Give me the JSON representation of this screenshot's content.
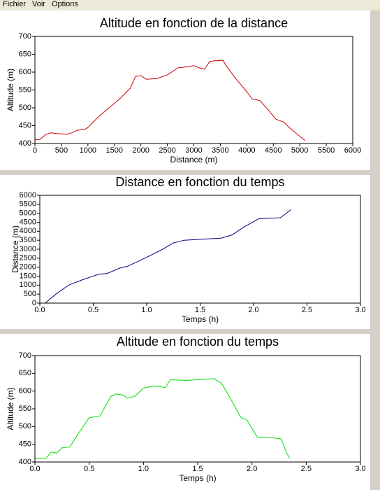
{
  "menu": [
    "Fichier",
    "Voir",
    "Options"
  ],
  "chart_data": [
    {
      "type": "line",
      "title": "Altitude en fonction de la distance",
      "xlabel": "Distance (m)",
      "ylabel": "Altitude (m)",
      "x": [
        0,
        100,
        200,
        300,
        400,
        500,
        600,
        700,
        800,
        950,
        1000,
        1200,
        1400,
        1600,
        1800,
        1900,
        2000,
        2100,
        2300,
        2500,
        2700,
        2900,
        3000,
        3100,
        3200,
        3300,
        3400,
        3550,
        3600,
        3800,
        4000,
        4100,
        4250,
        4400,
        4550,
        4700,
        4800,
        5000,
        5100
      ],
      "series": [
        {
          "color": "#cc0000",
          "values": [
            410,
            412,
            425,
            430,
            428,
            427,
            426,
            430,
            437,
            440,
            445,
            475,
            500,
            525,
            555,
            588,
            590,
            580,
            582,
            592,
            612,
            615,
            618,
            612,
            608,
            630,
            632,
            633,
            620,
            580,
            545,
            525,
            520,
            495,
            468,
            460,
            445,
            420,
            408
          ]
        }
      ],
      "xlim": [
        0,
        6000
      ],
      "xticks": [
        0,
        500,
        1000,
        1500,
        2000,
        2500,
        3000,
        3500,
        4000,
        4500,
        5000,
        5500,
        6000
      ],
      "ylim": [
        400,
        700
      ],
      "yticks": [
        400,
        450,
        500,
        550,
        600,
        650,
        700
      ]
    },
    {
      "type": "line",
      "title": "Distance en fonction du temps",
      "xlabel": "Temps (h)",
      "ylabel": "Distance (m)",
      "x": [
        0,
        0.05,
        0.15,
        0.27,
        0.4,
        0.55,
        0.63,
        0.75,
        0.82,
        1.0,
        1.15,
        1.25,
        1.35,
        1.5,
        1.7,
        1.8,
        1.9,
        2.05,
        2.25,
        2.35
      ],
      "series": [
        {
          "color": "#000080",
          "values": [
            0,
            0,
            500,
            1000,
            1300,
            1600,
            1650,
            1950,
            2050,
            2550,
            3000,
            3350,
            3500,
            3550,
            3620,
            3800,
            4200,
            4700,
            4750,
            5200
          ]
        }
      ],
      "xlim": [
        0,
        3
      ],
      "xticks": [
        {
          "value": 0,
          "label": "0.0"
        },
        0.5,
        {
          "value": 1,
          "label": "1.0"
        },
        1.5,
        {
          "value": 2,
          "label": "2.0"
        },
        2.5,
        {
          "value": 3,
          "label": "3.0"
        }
      ],
      "ylim": [
        0,
        6000
      ],
      "yticks": [
        0,
        500,
        1000,
        1500,
        2000,
        2500,
        3000,
        3500,
        4000,
        4500,
        5000,
        5500,
        6000
      ]
    },
    {
      "type": "line",
      "title": "Altitude en fonction du temps",
      "xlabel": "Temps (h)",
      "ylabel": "Altitude (m)",
      "x": [
        0,
        0.1,
        0.15,
        0.2,
        0.25,
        0.32,
        0.4,
        0.5,
        0.6,
        0.7,
        0.75,
        0.82,
        0.85,
        0.92,
        1.0,
        1.1,
        1.2,
        1.25,
        1.4,
        1.65,
        1.72,
        1.8,
        1.9,
        1.95,
        2.05,
        2.2,
        2.27,
        2.32,
        2.35
      ],
      "series": [
        {
          "color": "#00dd00",
          "values": [
            410,
            410,
            428,
            425,
            440,
            442,
            480,
            525,
            530,
            585,
            592,
            588,
            580,
            585,
            608,
            615,
            610,
            632,
            630,
            635,
            622,
            580,
            525,
            520,
            470,
            468,
            465,
            425,
            410
          ]
        }
      ],
      "xlim": [
        0,
        3
      ],
      "xticks": [
        {
          "value": 0,
          "label": "0.0"
        },
        0.5,
        {
          "value": 1,
          "label": "1.0"
        },
        1.5,
        {
          "value": 2,
          "label": "2.0"
        },
        2.5,
        {
          "value": 3,
          "label": "3.0"
        }
      ],
      "ylim": [
        400,
        700
      ],
      "yticks": [
        400,
        450,
        500,
        550,
        600,
        650,
        700
      ]
    }
  ]
}
